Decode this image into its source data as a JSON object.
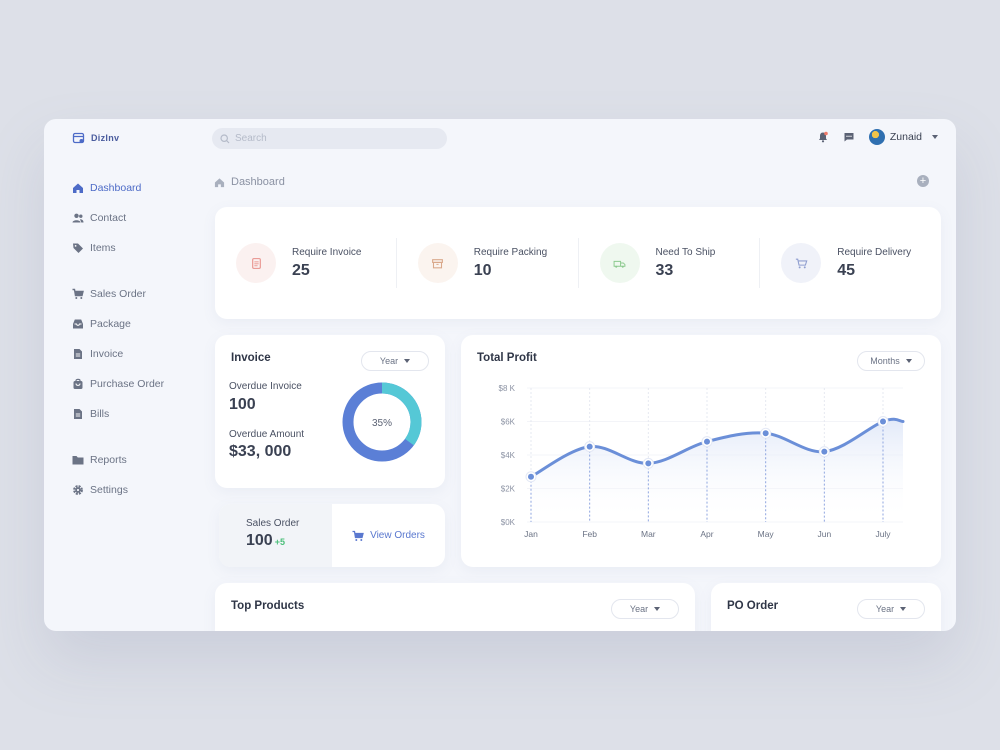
{
  "app": {
    "name": "DizInv"
  },
  "search": {
    "placeholder": "Search"
  },
  "header": {
    "user_name": "Zunaid"
  },
  "breadcrumb": {
    "label": "Dashboard"
  },
  "sidebar": {
    "items": [
      {
        "label": "Dashboard",
        "icon": "home-icon",
        "active": true
      },
      {
        "label": "Contact",
        "icon": "users-icon"
      },
      {
        "label": "Items",
        "icon": "tag-icon"
      },
      {
        "label": "Sales Order",
        "icon": "cart-icon"
      },
      {
        "label": "Package",
        "icon": "inbox-icon"
      },
      {
        "label": "Invoice",
        "icon": "document-icon"
      },
      {
        "label": "Purchase Order",
        "icon": "bag-icon"
      },
      {
        "label": "Bills",
        "icon": "document-icon"
      },
      {
        "label": "Reports",
        "icon": "folder-icon"
      },
      {
        "label": "Settings",
        "icon": "gear-icon"
      }
    ]
  },
  "stats": [
    {
      "label": "Require Invoice",
      "value": "25",
      "icon": "invoice-icon",
      "color": "#e8908a",
      "bg": "#fbf1f0"
    },
    {
      "label": "Require Packing",
      "value": "10",
      "icon": "box-icon",
      "color": "#d9a88a",
      "bg": "#fbf4ef"
    },
    {
      "label": "Need To Ship",
      "value": "33",
      "icon": "truck-icon",
      "color": "#8cc98e",
      "bg": "#eff8ef"
    },
    {
      "label": "Require Delivery",
      "value": "45",
      "icon": "cart-icon",
      "color": "#8f9ed0",
      "bg": "#f0f2f9"
    }
  ],
  "invoice": {
    "title": "Invoice",
    "filter": "Year",
    "overdue_invoice_label": "Overdue Invoice",
    "overdue_invoice_value": "100",
    "overdue_amount_label": "Overdue Amount",
    "overdue_amount_value": "$33, 000",
    "donut_percent": 35,
    "donut_label": "35%",
    "colors": {
      "primary": "#5b7fd6",
      "secondary": "#55c8d6"
    }
  },
  "sales_order": {
    "label": "Sales Order",
    "value": "100",
    "delta": "+5",
    "view_label": "View Orders"
  },
  "profit": {
    "title": "Total Profit",
    "filter": "Months"
  },
  "chart_data": {
    "type": "line",
    "title": "Total Profit",
    "categories": [
      "Jan",
      "Feb",
      "Mar",
      "Apr",
      "May",
      "Jun",
      "July"
    ],
    "series": [
      {
        "values": [
          2.7,
          4.5,
          3.5,
          4.8,
          5.3,
          4.2,
          6.0
        ]
      }
    ],
    "y_ticks": [
      "$8 K",
      "$6K",
      "$4K",
      "$2K",
      "$0K"
    ],
    "ylim": [
      0,
      8
    ],
    "color": "#6b8fd8",
    "grid": true
  },
  "top_products": {
    "title": "Top Products",
    "filter": "Year"
  },
  "po_order": {
    "title": "PO Order",
    "filter": "Year"
  }
}
